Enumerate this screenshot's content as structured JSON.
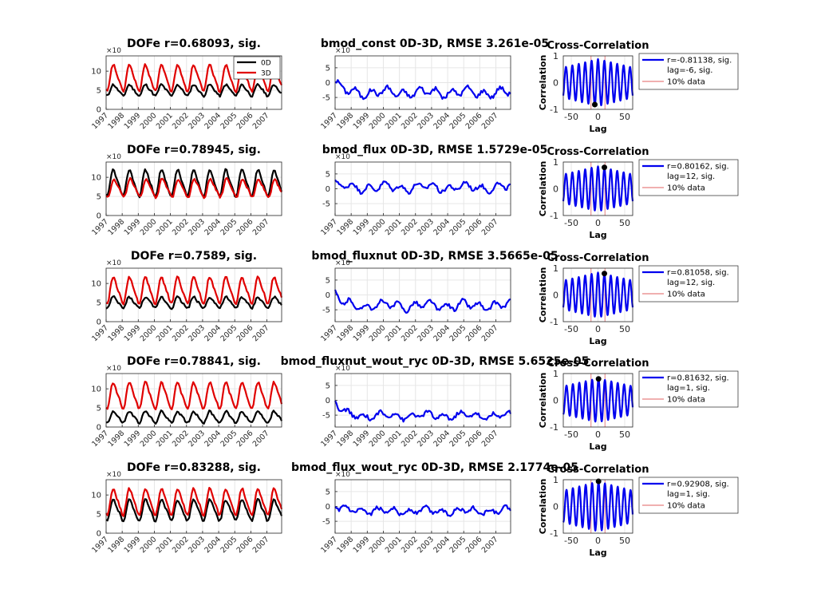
{
  "colors": {
    "line_0d": "#000000",
    "line_3d": "#e00000",
    "diff": "#0000ee",
    "xcorr": "#0000ee",
    "marker": "#000000",
    "refline": "#e06060",
    "grid": "#e6e6e6",
    "axis": "#262626"
  },
  "years": [
    "1997",
    "1998",
    "1999",
    "2000",
    "2001",
    "2002",
    "2003",
    "2004",
    "2005",
    "2006",
    "2007"
  ],
  "exponent_label": "×10",
  "legend_0d": "0D",
  "legend_3d": "3D",
  "xcorr_title": "Cross-Correlation",
  "xcorr_xlabel": "Lag",
  "xcorr_ylabel": "Correlation",
  "tenpct_label": "10% data",
  "rows": [
    {
      "dofe_title": "DOFe r=0.68093, sig.",
      "diff_title": "bmod_const 0D-3D, RMSE 3.261e-05",
      "xcorr_legend": [
        "r=-0.81138, sig.",
        "lag=-6, sig."
      ],
      "chart_data": [
        {
          "type": "line",
          "title": "DOFe r=0.68093, sig.",
          "x": "monthly 1997-2007",
          "ylim": [
            0,
            14
          ],
          "yticks": [
            0,
            5,
            10
          ],
          "series": [
            {
              "name": "0D",
              "mean": 5.0,
              "amp": 1.6,
              "peak_month": 6,
              "approx_range": [
                3,
                7
              ]
            },
            {
              "name": "3D",
              "mean": 8.2,
              "amp": 3.8,
              "peak_month": 6,
              "approx_range": [
                4.5,
                12.5
              ]
            }
          ]
        },
        {
          "type": "line",
          "title": "bmod_const 0D-3D, RMSE 3.261e-05",
          "ylim": [
            -9,
            9
          ],
          "yticks": [
            -5,
            0,
            5
          ],
          "series": [
            {
              "name": "",
              "start": 0.5,
              "mean": -3.3,
              "amp": 1.4,
              "approx_range": [
                -7,
                0.5
              ]
            }
          ]
        },
        {
          "type": "line",
          "title": "Cross-Correlation",
          "xlabel": "Lag",
          "ylabel": "Correlation",
          "xlim": [
            -65,
            65
          ],
          "ylim": [
            -1,
            1
          ],
          "series": [
            {
              "name": "r=-0.81138, sig. lag=-6, sig.",
              "period": 12,
              "max_lag_r": 0.88,
              "extreme": {
                "lag": -6,
                "r": -0.81138
              }
            }
          ]
        }
      ]
    },
    {
      "dofe_title": "DOFe r=0.78945, sig.",
      "diff_title": "bmod_flux 0D-3D, RMSE 1.5729e-05",
      "xcorr_legend": [
        "r=0.80162, sig.",
        "lag=12, sig."
      ],
      "chart_data": [
        {
          "type": "line",
          "title": "DOFe r=0.78945, sig.",
          "ylim": [
            0,
            14
          ],
          "yticks": [
            0,
            5,
            10
          ],
          "series": [
            {
              "name": "0D",
              "mean": 8.5,
              "amp": 3.8,
              "peak_month": 6,
              "approx_range": [
                4.5,
                12.5
              ]
            },
            {
              "name": "3D",
              "mean": 7.2,
              "amp": 2.6,
              "peak_month": 7,
              "approx_range": [
                4.5,
                10
              ]
            }
          ]
        },
        {
          "type": "line",
          "title": "bmod_flux 0D-3D, RMSE 1.5729e-05",
          "ylim": [
            -9,
            9
          ],
          "yticks": [
            -5,
            0,
            5
          ],
          "series": [
            {
              "name": "",
              "start": 1.5,
              "mean": 0.5,
              "amp": 1.3,
              "approx_range": [
                -2,
                4.5
              ]
            }
          ]
        },
        {
          "type": "line",
          "title": "Cross-Correlation",
          "xlabel": "Lag",
          "ylabel": "Correlation",
          "xlim": [
            -65,
            65
          ],
          "ylim": [
            -1,
            1
          ],
          "series": [
            {
              "name": "r=0.80162, sig. lag=12, sig.",
              "period": 12,
              "max_lag_r": 0.84,
              "extreme": {
                "lag": 12,
                "r": 0.80162
              }
            }
          ]
        }
      ]
    },
    {
      "dofe_title": "DOFe r=0.7589, sig.",
      "diff_title": "bmod_fluxnut 0D-3D, RMSE 3.5665e-05",
      "xcorr_legend": [
        "r=0.81058, sig.",
        "lag=12, sig."
      ],
      "chart_data": [
        {
          "type": "line",
          "title": "DOFe r=0.7589, sig.",
          "ylim": [
            0,
            14
          ],
          "yticks": [
            0,
            5,
            10
          ],
          "series": [
            {
              "name": "0D",
              "mean": 5.0,
              "amp": 1.6,
              "peak_month": 6,
              "approx_range": [
                3,
                7
              ]
            },
            {
              "name": "3D",
              "mean": 8.2,
              "amp": 3.8,
              "peak_month": 6,
              "approx_range": [
                4.5,
                12.5
              ]
            }
          ]
        },
        {
          "type": "line",
          "title": "bmod_fluxnut 0D-3D, RMSE 3.5665e-05",
          "ylim": [
            -9,
            9
          ],
          "yticks": [
            -5,
            0,
            5
          ],
          "series": [
            {
              "name": "",
              "start": 0.5,
              "mean": -3.6,
              "amp": 1.4,
              "approx_range": [
                -7.5,
                0.5
              ]
            }
          ]
        },
        {
          "type": "line",
          "title": "Cross-Correlation",
          "xlabel": "Lag",
          "ylabel": "Correlation",
          "xlim": [
            -65,
            65
          ],
          "ylim": [
            -1,
            1
          ],
          "series": [
            {
              "name": "r=0.81058, sig. lag=12, sig.",
              "period": 12,
              "max_lag_r": 0.84,
              "extreme": {
                "lag": 12,
                "r": 0.81058
              }
            }
          ]
        }
      ]
    },
    {
      "dofe_title": "DOFe r=0.78841, sig.",
      "diff_title": "bmod_fluxnut_wout_ryc 0D-3D, RMSE 5.6525e-05",
      "xcorr_legend": [
        "r=0.81632, sig.",
        "lag=1, sig."
      ],
      "chart_data": [
        {
          "type": "line",
          "title": "DOFe r=0.78841, sig.",
          "ylim": [
            0,
            14
          ],
          "yticks": [
            0,
            5,
            10
          ],
          "series": [
            {
              "name": "0D",
              "mean": 2.6,
              "amp": 1.6,
              "peak_month": 6,
              "approx_range": [
                1,
                5
              ]
            },
            {
              "name": "3D",
              "mean": 8.2,
              "amp": 3.8,
              "peak_month": 6,
              "approx_range": [
                4.5,
                12.5
              ]
            }
          ]
        },
        {
          "type": "line",
          "title": "bmod_fluxnut_wout_ryc 0D-3D, RMSE 5.6525e-05",
          "ylim": [
            -9,
            9
          ],
          "yticks": [
            -5,
            0,
            5
          ],
          "series": [
            {
              "name": "",
              "start": 0,
              "mean": -5.2,
              "amp": 1.1,
              "approx_range": [
                -8,
                0
              ]
            }
          ]
        },
        {
          "type": "line",
          "title": "Cross-Correlation",
          "xlabel": "Lag",
          "ylabel": "Correlation",
          "xlim": [
            -65,
            65
          ],
          "ylim": [
            -1,
            1
          ],
          "series": [
            {
              "name": "r=0.81632, sig. lag=1, sig.",
              "period": 12,
              "max_lag_r": 0.82,
              "extreme": {
                "lag": 1,
                "r": 0.81632
              }
            }
          ]
        }
      ]
    },
    {
      "dofe_title": "DOFe r=0.83288, sig.",
      "diff_title": "bmod_flux_wout_ryc 0D-3D, RMSE 2.1774e-05",
      "xcorr_legend": [
        "r=0.92908, sig.",
        "lag=1, sig."
      ],
      "chart_data": [
        {
          "type": "line",
          "title": "DOFe r=0.83288, sig.",
          "ylim": [
            0,
            14
          ],
          "yticks": [
            0,
            5,
            10
          ],
          "series": [
            {
              "name": "0D",
              "mean": 6.0,
              "amp": 3.0,
              "peak_month": 6,
              "approx_range": [
                3,
                9.5
              ]
            },
            {
              "name": "3D",
              "mean": 8.2,
              "amp": 3.8,
              "peak_month": 6,
              "approx_range": [
                4.5,
                12.5
              ]
            }
          ]
        },
        {
          "type": "line",
          "title": "bmod_flux_wout_ryc 0D-3D, RMSE 2.1774e-05",
          "ylim": [
            -9,
            9
          ],
          "yticks": [
            -5,
            0,
            5
          ],
          "series": [
            {
              "name": "",
              "start": 0,
              "mean": -1.5,
              "amp": 1.0,
              "approx_range": [
                -5,
                1.5
              ]
            }
          ]
        },
        {
          "type": "line",
          "title": "Cross-Correlation",
          "xlabel": "Lag",
          "ylabel": "Correlation",
          "xlim": [
            -65,
            65
          ],
          "ylim": [
            -1,
            1
          ],
          "series": [
            {
              "name": "r=0.92908, sig. lag=1, sig.",
              "period": 12,
              "max_lag_r": 0.93,
              "extreme": {
                "lag": 1,
                "r": 0.92908
              }
            }
          ]
        }
      ]
    }
  ],
  "chart_data": [
    {
      "type": "line",
      "description_ref": "rows[*].chart_data",
      "ylim": [
        0,
        14
      ],
      "xlim": [
        "1997",
        "2007"
      ]
    }
  ]
}
